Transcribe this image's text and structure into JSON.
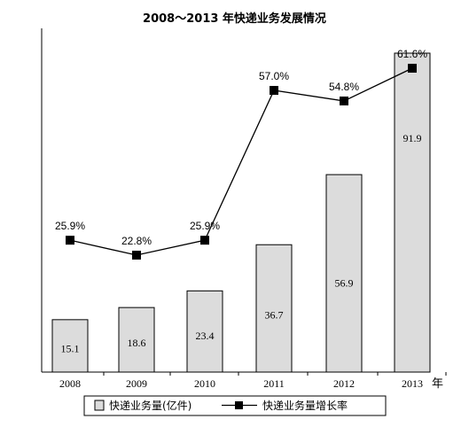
{
  "chart_data": {
    "type": "bar+line",
    "title": "2008～2013 年快递业务发展情况",
    "categories": [
      "2008",
      "2009",
      "2010",
      "2011",
      "2012",
      "2013"
    ],
    "x_unit": "年",
    "series": [
      {
        "name": "快递业务量(亿件)",
        "type": "bar",
        "values": [
          15.1,
          18.6,
          23.4,
          36.7,
          56.9,
          91.9
        ],
        "labels": [
          "15.1",
          "18.6",
          "23.4",
          "36.7",
          "56.9",
          "91.9"
        ],
        "color": "#dcdcdc"
      },
      {
        "name": "快递业务量增长率",
        "type": "line",
        "values": [
          25.9,
          22.8,
          25.9,
          57.0,
          54.8,
          61.6
        ],
        "labels": [
          "25.9%",
          "22.8%",
          "25.9%",
          "57.0%",
          "54.8%",
          "61.6%"
        ],
        "color": "#000000"
      }
    ],
    "grid": false,
    "legend_position": "bottom"
  }
}
